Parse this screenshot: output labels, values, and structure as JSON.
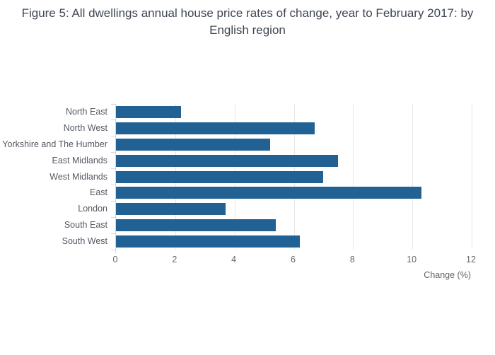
{
  "chart_data": {
    "type": "bar",
    "orientation": "horizontal",
    "title": "Figure 5: All dwellings annual house price rates of change, year to February 2017: by English region",
    "categories": [
      "North East",
      "North West",
      "Yorkshire and The Humber",
      "East Midlands",
      "West Midlands",
      "East",
      "London",
      "South East",
      "South West"
    ],
    "values": [
      2.2,
      6.7,
      5.2,
      7.5,
      7.0,
      10.3,
      3.7,
      5.4,
      6.2
    ],
    "xlabel": "Change (%)",
    "x_ticks": [
      0,
      2,
      4,
      6,
      8,
      10,
      12
    ],
    "xlim": [
      0,
      12
    ],
    "grid": "vertical",
    "legend": "none",
    "bar_color": "#226193"
  },
  "colors": {
    "bar": "#226193",
    "gridline": "#e8e8e8",
    "axis_line": "#ccd8e8",
    "title_text": "#3f4652",
    "y_label_text": "#545a63",
    "tick_text": "#666666",
    "background": "#ffffff"
  }
}
